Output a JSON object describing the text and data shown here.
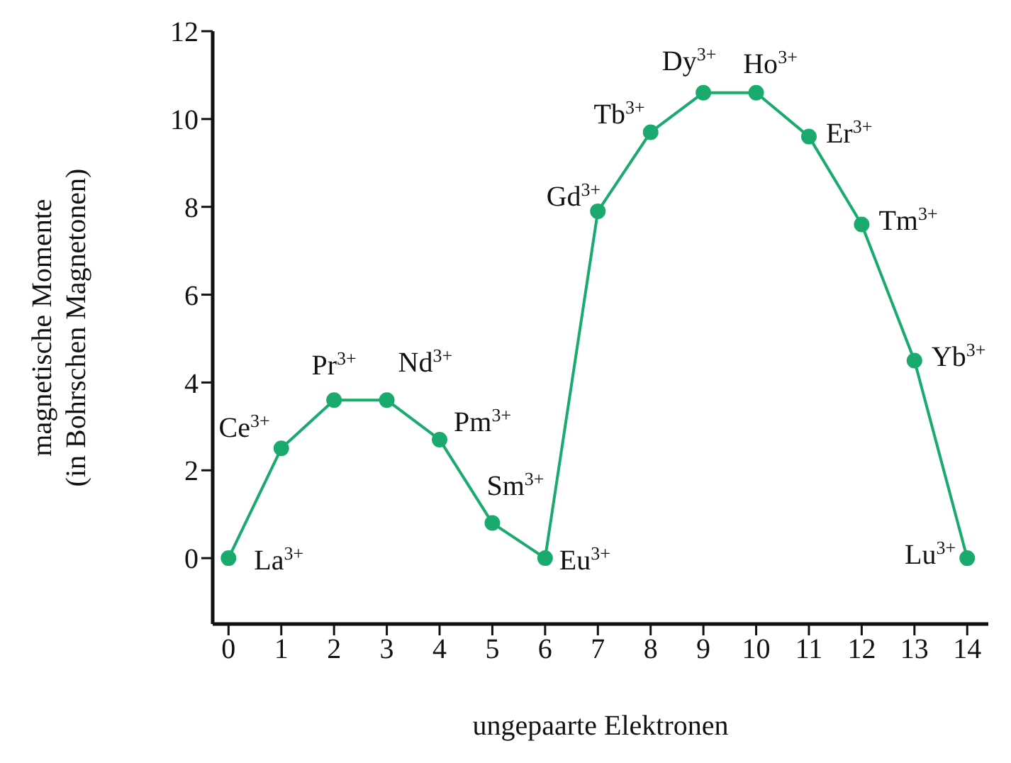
{
  "chart_data": {
    "type": "line",
    "xlabel": "ungepaarte Elektronen",
    "ylabel": "magnetische Momente\n(in Bohrschen Magnetonen)",
    "x": [
      0,
      1,
      2,
      3,
      4,
      5,
      6,
      7,
      8,
      9,
      10,
      11,
      12,
      13,
      14
    ],
    "series": [
      {
        "color": "#1aaa6e",
        "values": [
          0,
          2.5,
          3.6,
          3.6,
          2.7,
          0.8,
          0,
          7.9,
          9.7,
          10.6,
          10.6,
          9.6,
          7.6,
          4.5,
          0
        ]
      }
    ],
    "xlim": [
      -0.3,
      14.4
    ],
    "xticks": [
      0,
      1,
      2,
      3,
      4,
      5,
      6,
      7,
      8,
      9,
      10,
      11,
      12,
      13,
      14
    ],
    "ylim": [
      -1.5,
      12
    ],
    "yticks": [
      0,
      2,
      4,
      6,
      8,
      10,
      12
    ],
    "grid": false,
    "legend": false,
    "marker": "circle",
    "line_style": "solid",
    "annotations": [
      {
        "text": "La$^{3+}$",
        "x": 0,
        "y": 0
      },
      {
        "text": "Ce$^{3+}$",
        "x": 1,
        "y": 2.5
      },
      {
        "text": "Pr$^{3+}$",
        "x": 2,
        "y": 3.6
      },
      {
        "text": "Nd$^{3+}$",
        "x": 3,
        "y": 3.6
      },
      {
        "text": "Pm$^{3+}$",
        "x": 4,
        "y": 2.7
      },
      {
        "text": "Sm$^{3+}$",
        "x": 5,
        "y": 0.8
      },
      {
        "text": "Eu$^{3+}$",
        "x": 6,
        "y": 0
      },
      {
        "text": "Gd$^{3+}$",
        "x": 7,
        "y": 7.9
      },
      {
        "text": "Tb$^{3+}$",
        "x": 8,
        "y": 9.7
      },
      {
        "text": "Dy$^{3+}$",
        "x": 9,
        "y": 10.6
      },
      {
        "text": "Ho$^{3+}$",
        "x": 10,
        "y": 10.6
      },
      {
        "text": "Er$^{3+}$",
        "x": 11,
        "y": 9.6
      },
      {
        "text": "Tm$^{3+}$",
        "x": 12,
        "y": 7.6
      },
      {
        "text": "Yb$^{3+}$",
        "x": 13,
        "y": 4.5
      },
      {
        "text": "Lu$^{3+}$",
        "x": 14,
        "y": 0
      }
    ]
  }
}
